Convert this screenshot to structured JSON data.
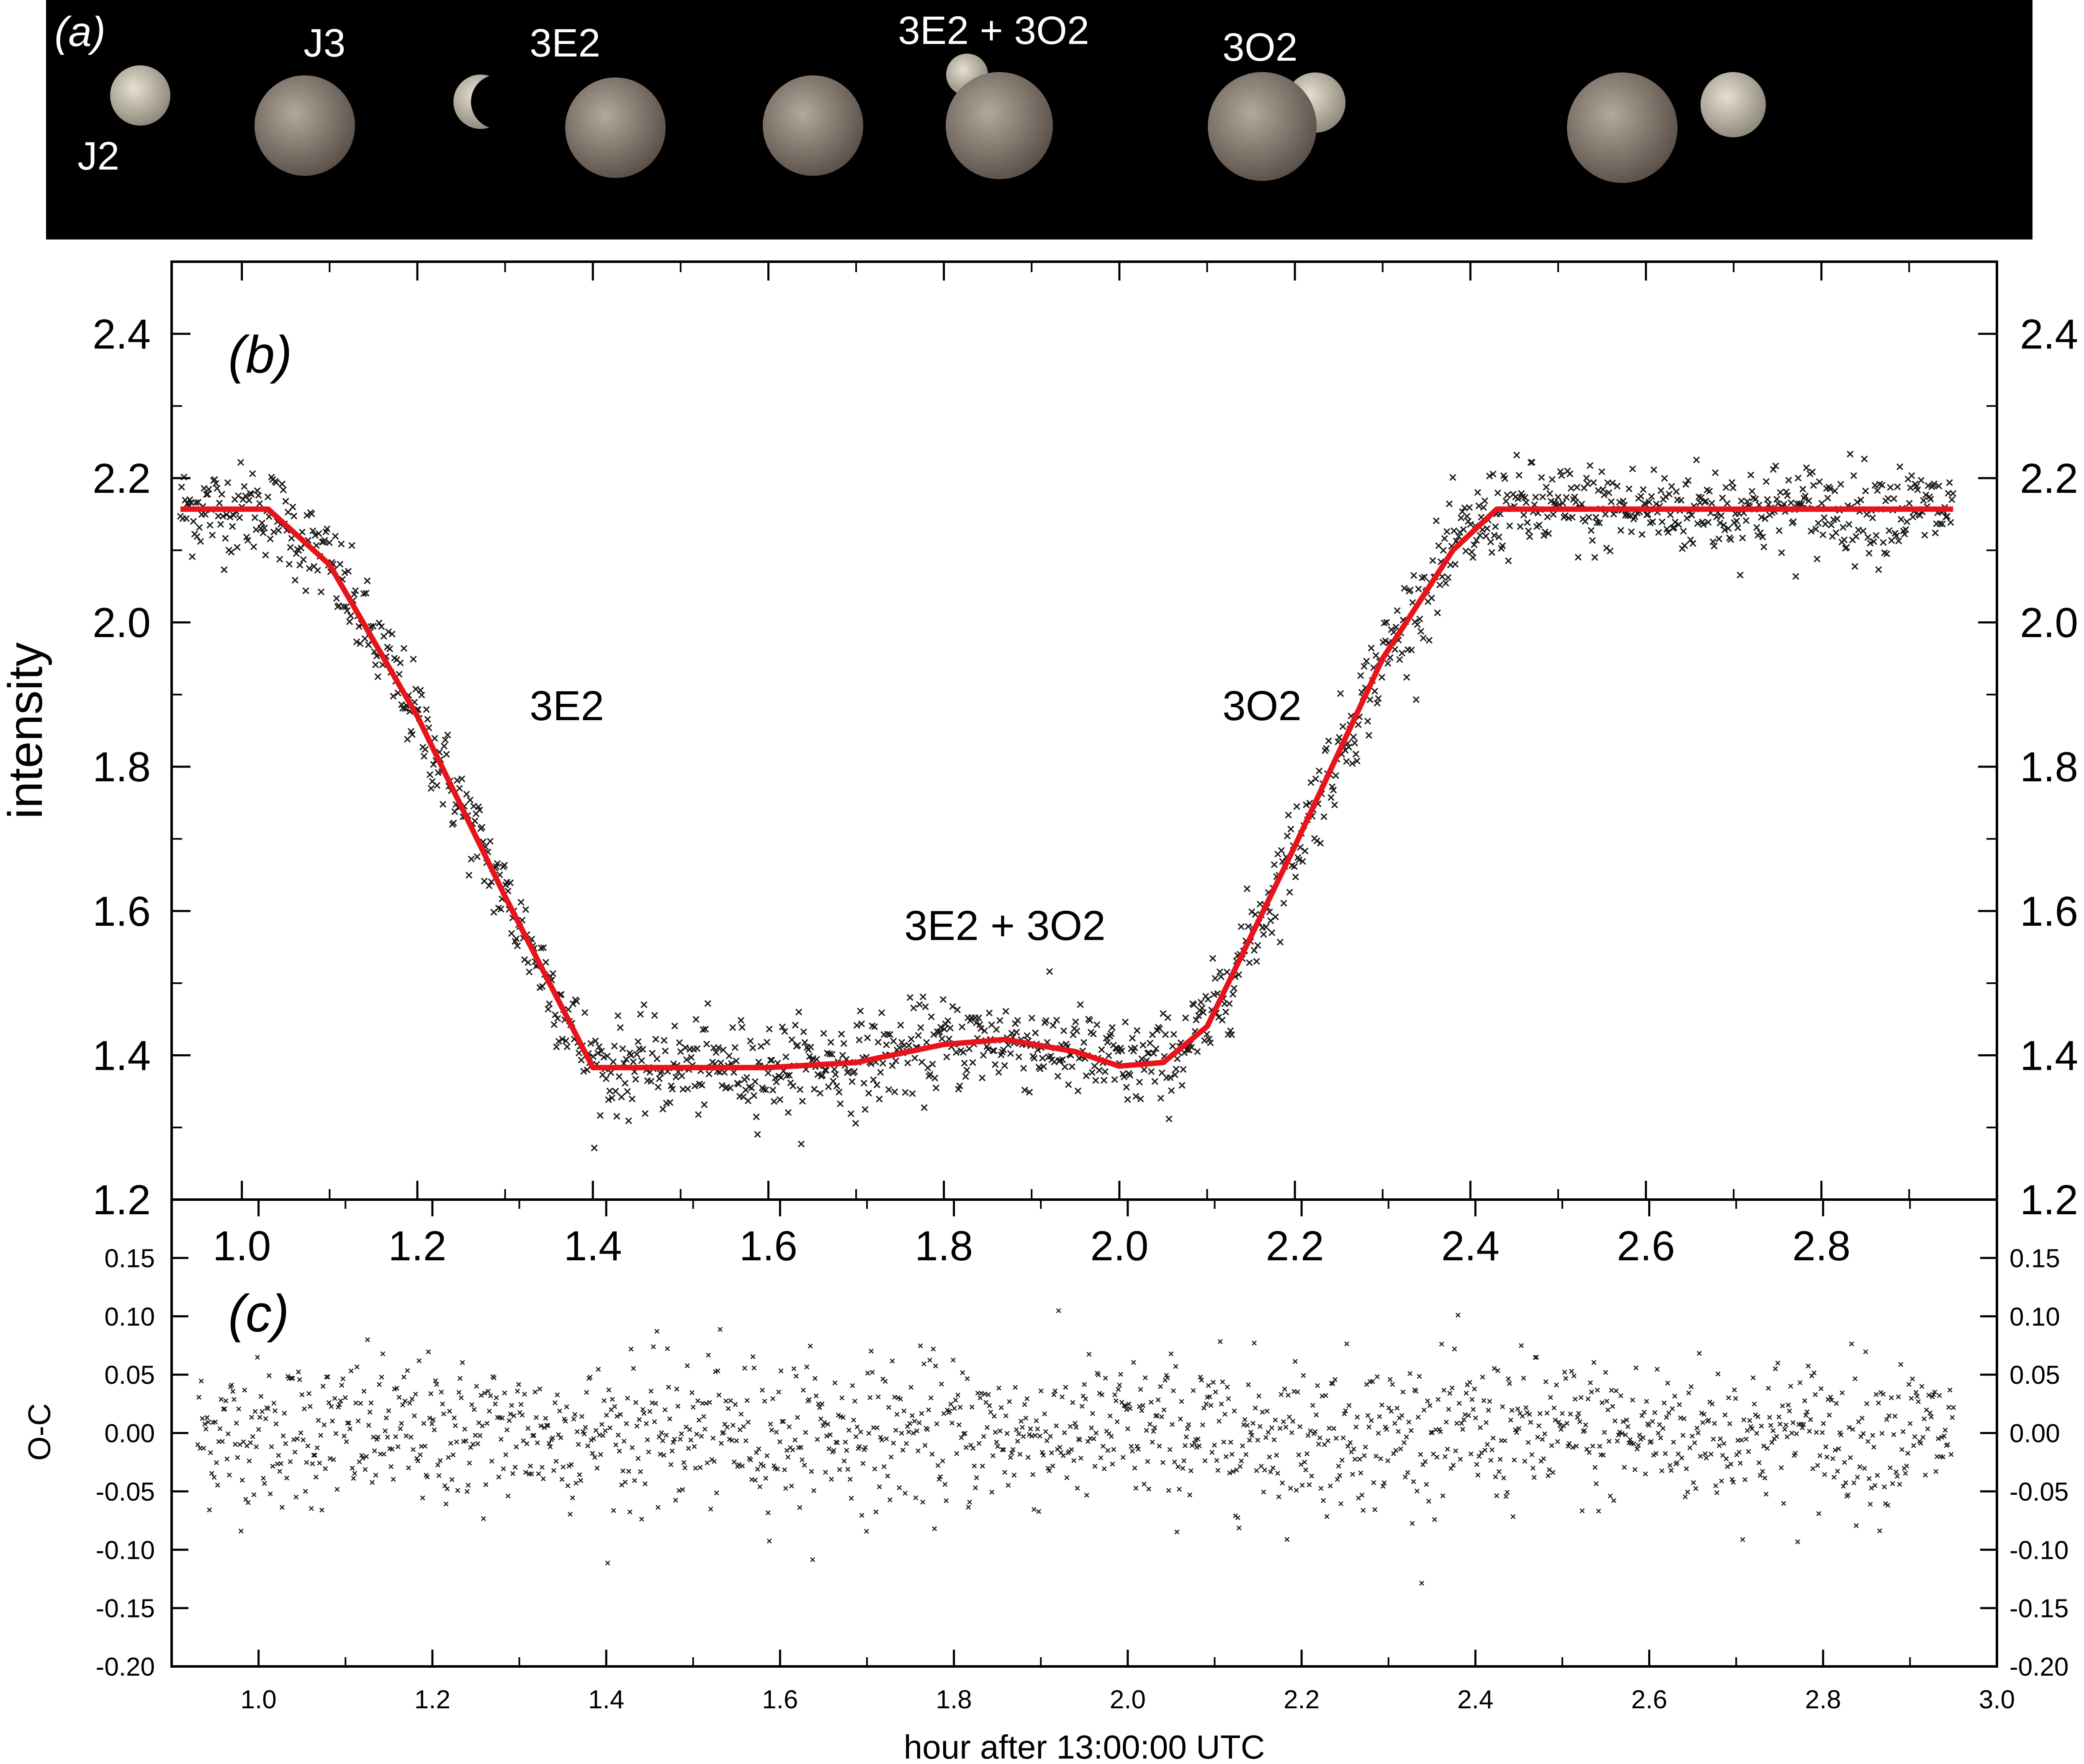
{
  "chart_data": [
    {
      "panel": "(a)",
      "type": "other",
      "labels": [
        "J2",
        "J3",
        "3E2",
        "3E2 + 3O2",
        "3O2"
      ],
      "colors": {
        "background": "#000000",
        "moon_light": "#c9c2b4",
        "ganymede": "#8a7f74"
      }
    },
    {
      "panel": "(b)",
      "type": "scatter",
      "xlabel": "",
      "ylabel": "intensity",
      "xlim": [
        0.92,
        3.0
      ],
      "ylim": [
        1.2,
        2.5
      ],
      "x_ticks": [
        "1.0",
        "1.2",
        "1.4",
        "1.6",
        "1.8",
        "2.0",
        "2.2",
        "2.4",
        "2.6",
        "2.8"
      ],
      "y_ticks": [
        "1.2",
        "1.4",
        "1.6",
        "1.8",
        "2.0",
        "2.2",
        "2.4"
      ],
      "annotations": [
        "3E2",
        "3O2",
        "3E2 + 3O2"
      ],
      "colors": {
        "points": "#1a1a1a",
        "fit": "#e8141c"
      },
      "fit": {
        "x": [
          0.93,
          1.03,
          1.1,
          1.2,
          1.3,
          1.4,
          1.5,
          1.6,
          1.7,
          1.8,
          1.87,
          1.95,
          2.0,
          2.05,
          2.1,
          2.2,
          2.3,
          2.38,
          2.43,
          2.95
        ],
        "y": [
          2.157,
          2.157,
          2.08,
          1.87,
          1.62,
          1.383,
          1.383,
          1.383,
          1.39,
          1.415,
          1.422,
          1.405,
          1.385,
          1.39,
          1.44,
          1.69,
          1.95,
          2.1,
          2.157,
          2.157
        ]
      }
    },
    {
      "panel": "(c)",
      "type": "scatter",
      "xlabel": "hour after 13:00:00 UTC",
      "ylabel": "O-C",
      "xlim": [
        0.9,
        3.0
      ],
      "ylim": [
        -0.2,
        0.2
      ],
      "x_ticks": [
        "1.0",
        "1.2",
        "1.4",
        "1.6",
        "1.8",
        "2.0",
        "2.2",
        "2.4",
        "2.6",
        "2.8",
        "3.0"
      ],
      "y_ticks": [
        "0.15",
        "0.10",
        "0.05",
        "0.00",
        "-0.05",
        "-0.10",
        "-0.15",
        "-0.20"
      ],
      "colors": {
        "points": "#1a1a1a"
      },
      "residual_sigma": 0.032
    }
  ]
}
